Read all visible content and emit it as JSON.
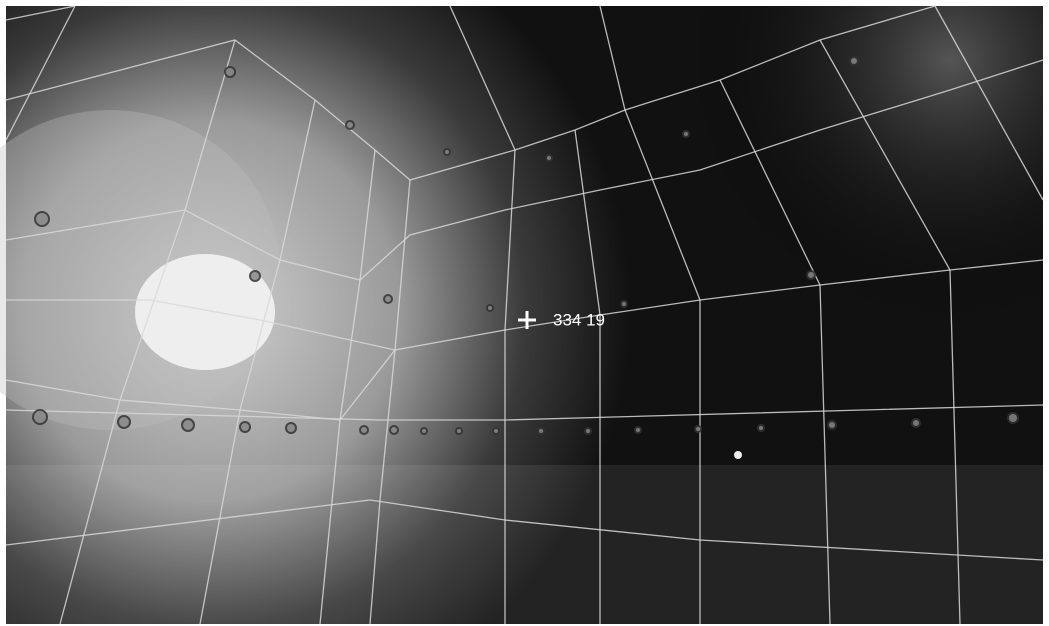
{
  "cursor_readout": "334 19"
}
